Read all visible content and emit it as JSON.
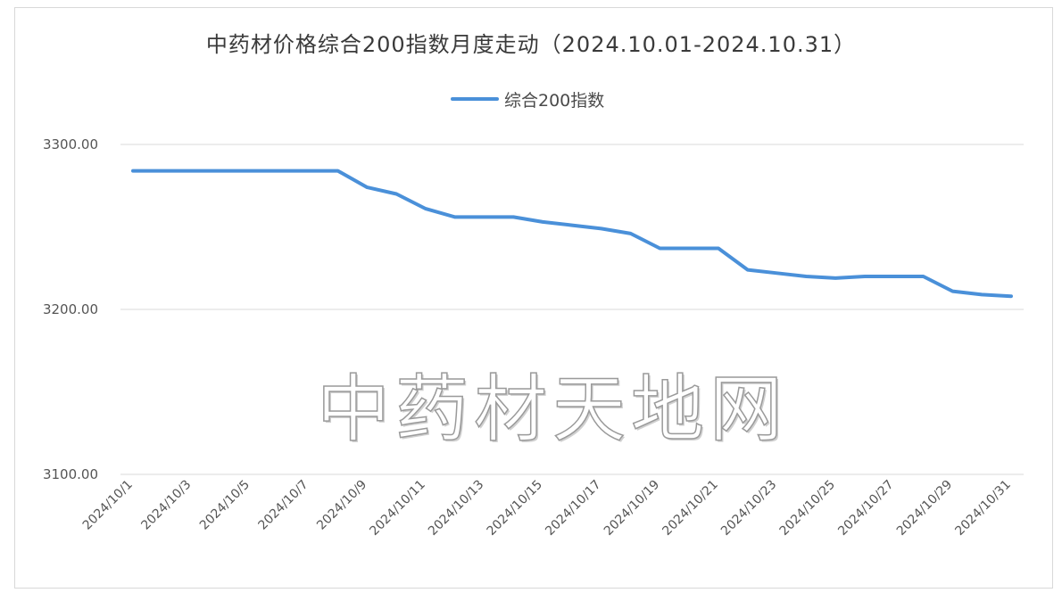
{
  "chart_data": {
    "type": "line",
    "title": "中药材价格综合200指数月度走动（2024.10.01-2024.10.31）",
    "xlabel": "",
    "ylabel": "",
    "ylim": [
      3100,
      3300
    ],
    "yticks": [
      "3300.00",
      "3200.00",
      "3100.00"
    ],
    "grid": true,
    "legend_position": "top-center",
    "x": [
      "2024/10/1",
      "2024/10/2",
      "2024/10/3",
      "2024/10/4",
      "2024/10/5",
      "2024/10/6",
      "2024/10/7",
      "2024/10/8",
      "2024/10/9",
      "2024/10/10",
      "2024/10/11",
      "2024/10/12",
      "2024/10/13",
      "2024/10/14",
      "2024/10/15",
      "2024/10/16",
      "2024/10/17",
      "2024/10/18",
      "2024/10/19",
      "2024/10/20",
      "2024/10/21",
      "2024/10/22",
      "2024/10/23",
      "2024/10/24",
      "2024/10/25",
      "2024/10/26",
      "2024/10/27",
      "2024/10/28",
      "2024/10/29",
      "2024/10/30",
      "2024/10/31"
    ],
    "xtick_labels": [
      "2024/10/1",
      "2024/10/3",
      "2024/10/5",
      "2024/10/7",
      "2024/10/9",
      "2024/10/11",
      "2024/10/13",
      "2024/10/15",
      "2024/10/17",
      "2024/10/19",
      "2024/10/21",
      "2024/10/23",
      "2024/10/25",
      "2024/10/27",
      "2024/10/29",
      "2024/10/31"
    ],
    "series": [
      {
        "name": "综合200指数",
        "color": "#4a90d9",
        "values": [
          3284,
          3284,
          3284,
          3284,
          3284,
          3284,
          3284,
          3284,
          3274,
          3270,
          3261,
          3256,
          3256,
          3256,
          3253,
          3251,
          3249,
          3246,
          3237,
          3237,
          3237,
          3224,
          3222,
          3220,
          3219,
          3220,
          3220,
          3220,
          3211,
          3209,
          3208
        ]
      }
    ]
  },
  "watermark": "中药材天地网"
}
